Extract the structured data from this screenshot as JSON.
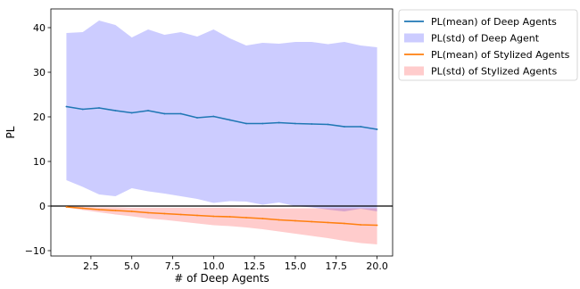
{
  "chart_data": {
    "type": "line",
    "title": "",
    "xlabel": "# of Deep Agents",
    "ylabel": "PL",
    "xlim": [
      0.05,
      20.95
    ],
    "ylim": [
      -11.2,
      44.2
    ],
    "x_ticks": [
      2.5,
      5.0,
      7.5,
      10.0,
      12.5,
      15.0,
      17.5,
      20.0
    ],
    "y_ticks": [
      -10,
      0,
      10,
      20,
      30,
      40
    ],
    "grid": false,
    "legend_position": "outside-upper-right",
    "zero_line": true,
    "x": [
      1,
      2,
      3,
      4,
      5,
      6,
      7,
      8,
      9,
      10,
      11,
      12,
      13,
      14,
      15,
      16,
      17,
      18,
      19,
      20
    ],
    "series": [
      {
        "name": "PL(mean) of Deep Agents",
        "kind": "line",
        "color": "#1f77b4",
        "values": [
          22.3,
          21.7,
          22.0,
          21.4,
          20.9,
          21.4,
          20.7,
          20.7,
          19.8,
          20.1,
          19.3,
          18.5,
          18.5,
          18.7,
          18.5,
          18.4,
          18.3,
          17.8,
          17.8,
          17.2
        ]
      },
      {
        "name": "PL(std) of Deep Agent",
        "kind": "band",
        "color": "#0000ff",
        "opacity": 0.2,
        "upper": [
          38.8,
          39.0,
          41.6,
          40.6,
          37.8,
          39.6,
          38.4,
          39.0,
          38.0,
          39.6,
          37.6,
          36.0,
          36.6,
          36.4,
          36.8,
          36.8,
          36.3,
          36.8,
          36.0,
          35.6
        ],
        "lower": [
          5.8,
          4.3,
          2.6,
          2.2,
          4.0,
          3.3,
          2.8,
          2.2,
          1.6,
          0.7,
          1.1,
          1.0,
          0.3,
          0.8,
          0.0,
          -0.3,
          -0.8,
          -1.2,
          -0.6,
          -1.2
        ]
      },
      {
        "name": "PL(mean) of Stylized Agents",
        "kind": "line",
        "color": "#ff7f0e",
        "values": [
          -0.2,
          -0.5,
          -0.8,
          -1.0,
          -1.2,
          -1.5,
          -1.7,
          -1.9,
          -2.1,
          -2.3,
          -2.4,
          -2.6,
          -2.8,
          -3.1,
          -3.3,
          -3.5,
          -3.7,
          -3.9,
          -4.2,
          -4.3
        ]
      },
      {
        "name": "PL(std) of Stylized Agents",
        "kind": "band",
        "color": "#ff0000",
        "opacity": 0.2,
        "upper": [
          -0.1,
          -0.2,
          -0.3,
          -0.3,
          -0.4,
          -0.4,
          -0.4,
          -0.4,
          -0.4,
          -0.4,
          -0.4,
          -0.5,
          -0.5,
          -0.5,
          -0.5,
          -0.5,
          -0.5,
          -0.5,
          -0.5,
          -0.5
        ],
        "lower": [
          -0.3,
          -0.9,
          -1.4,
          -1.9,
          -2.3,
          -2.8,
          -3.1,
          -3.5,
          -3.9,
          -4.3,
          -4.5,
          -4.8,
          -5.2,
          -5.7,
          -6.2,
          -6.7,
          -7.2,
          -7.8,
          -8.3,
          -8.6
        ]
      }
    ]
  }
}
